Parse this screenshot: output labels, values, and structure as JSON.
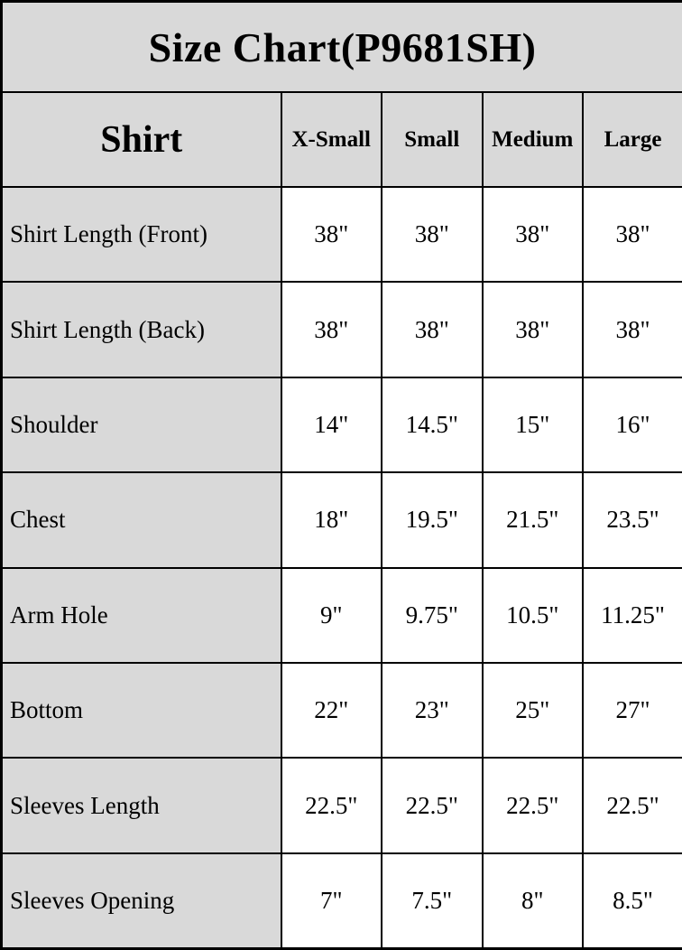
{
  "title": "Size Chart(P9681SH)",
  "colors": {
    "header_background": "#d9d9d9",
    "value_cell_background": "#ffffff",
    "border": "#000000",
    "text": "#000000"
  },
  "table": {
    "corner_label": "Shirt",
    "columns": [
      "X-Small",
      "Small",
      "Medium",
      "Large"
    ],
    "rows": [
      {
        "label": "Shirt Length (Front)",
        "values": [
          "38\"",
          "38\"",
          "38\"",
          "38\""
        ]
      },
      {
        "label": "Shirt Length (Back)",
        "values": [
          "38\"",
          "38\"",
          "38\"",
          "38\""
        ]
      },
      {
        "label": "Shoulder",
        "values": [
          "14\"",
          "14.5\"",
          "15\"",
          "16\""
        ]
      },
      {
        "label": "Chest",
        "values": [
          "18\"",
          "19.5\"",
          "21.5\"",
          "23.5\""
        ]
      },
      {
        "label": "Arm Hole",
        "values": [
          "9\"",
          "9.75\"",
          "10.5\"",
          "11.25\""
        ]
      },
      {
        "label": "Bottom",
        "values": [
          "22\"",
          "23\"",
          "25\"",
          "27\""
        ]
      },
      {
        "label": "Sleeves Length",
        "values": [
          "22.5\"",
          "22.5\"",
          "22.5\"",
          "22.5\""
        ]
      },
      {
        "label": "Sleeves Opening",
        "values": [
          "7\"",
          "7.5\"",
          "8\"",
          "8.5\""
        ]
      }
    ]
  },
  "chart_data": {
    "type": "table",
    "title": "Size Chart(P9681SH)",
    "corner_label": "Shirt",
    "columns": [
      "X-Small",
      "Small",
      "Medium",
      "Large"
    ],
    "rows": [
      {
        "label": "Shirt Length (Front)",
        "values_inches": [
          38,
          38,
          38,
          38
        ]
      },
      {
        "label": "Shirt Length (Back)",
        "values_inches": [
          38,
          38,
          38,
          38
        ]
      },
      {
        "label": "Shoulder",
        "values_inches": [
          14,
          14.5,
          15,
          16
        ]
      },
      {
        "label": "Chest",
        "values_inches": [
          18,
          19.5,
          21.5,
          23.5
        ]
      },
      {
        "label": "Arm Hole",
        "values_inches": [
          9,
          9.75,
          10.5,
          11.25
        ]
      },
      {
        "label": "Bottom",
        "values_inches": [
          22,
          23,
          25,
          27
        ]
      },
      {
        "label": "Sleeves Length",
        "values_inches": [
          22.5,
          22.5,
          22.5,
          22.5
        ]
      },
      {
        "label": "Sleeves Opening",
        "values_inches": [
          7,
          7.5,
          8,
          8.5
        ]
      }
    ],
    "units": "inches",
    "notes": "Product size chart table; gray label column and header band, white value cells, black grid borders"
  }
}
